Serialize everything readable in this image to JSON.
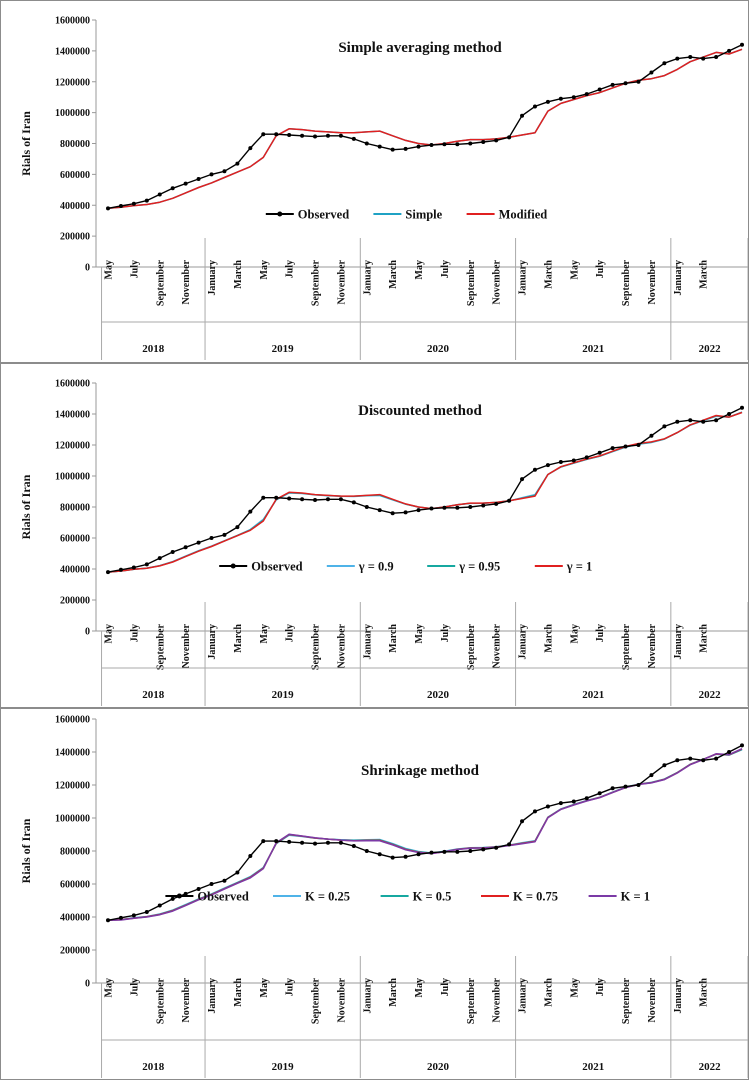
{
  "chart_data": [
    {
      "type": "line",
      "title": "Simple averaging method",
      "ylabel": "Rials of Iran",
      "xlabel": "",
      "ylim": [
        0,
        1600000
      ],
      "yticks": [
        0,
        200000,
        400000,
        600000,
        800000,
        1000000,
        1200000,
        1400000,
        1600000
      ],
      "ytick_labels": [
        "0",
        "200000",
        "400000",
        "600000",
        "800000",
        "1000000",
        "1200000",
        "1400000",
        "1600000"
      ],
      "x_start": "2018-05",
      "x_month_labels": [
        "May",
        "July",
        "September",
        "November",
        "January",
        "March",
        "May",
        "July",
        "September",
        "November",
        "January",
        "March",
        "May",
        "July",
        "September",
        "November",
        "January",
        "March",
        "May",
        "July",
        "September",
        "November",
        "January",
        "March"
      ],
      "year_labels": [
        "2018",
        "2019",
        "2020",
        "2021",
        "2022"
      ],
      "legend_position": "center-bottom",
      "grid": false,
      "series": [
        {
          "name": "Observed",
          "color": "#000000",
          "marker": true,
          "values": [
            380000,
            395000,
            410000,
            430000,
            470000,
            510000,
            540000,
            570000,
            600000,
            620000,
            670000,
            770000,
            860000,
            860000,
            855000,
            850000,
            845000,
            850000,
            850000,
            830000,
            800000,
            780000,
            760000,
            765000,
            780000,
            790000,
            795000,
            795000,
            800000,
            810000,
            820000,
            840000,
            980000,
            1040000,
            1070000,
            1090000,
            1100000,
            1120000,
            1150000,
            1180000,
            1190000,
            1200000,
            1260000,
            1320000,
            1350000,
            1360000,
            1350000,
            1360000,
            1400000,
            1440000
          ]
        },
        {
          "name": "Simple",
          "color": "#1fa2c4",
          "marker": false,
          "values": [
            380000,
            387000,
            398000,
            405000,
            420000,
            445000,
            480000,
            515000,
            545000,
            580000,
            615000,
            650000,
            710000,
            850000,
            895000,
            890000,
            880000,
            875000,
            870000,
            870000,
            875000,
            880000,
            850000,
            820000,
            800000,
            790000,
            800000,
            815000,
            825000,
            825000,
            830000,
            840000,
            855000,
            870000,
            1010000,
            1060000,
            1085000,
            1110000,
            1130000,
            1160000,
            1190000,
            1210000,
            1220000,
            1240000,
            1280000,
            1330000,
            1360000,
            1390000,
            1380000,
            1410000
          ]
        },
        {
          "name": "Modified",
          "color": "#e02020",
          "marker": false,
          "values": [
            380000,
            387000,
            398000,
            405000,
            420000,
            445000,
            480000,
            515000,
            545000,
            580000,
            615000,
            650000,
            710000,
            850000,
            895000,
            890000,
            880000,
            875000,
            870000,
            870000,
            875000,
            880000,
            850000,
            820000,
            800000,
            790000,
            800000,
            815000,
            825000,
            825000,
            830000,
            840000,
            855000,
            870000,
            1010000,
            1060000,
            1085000,
            1110000,
            1130000,
            1160000,
            1190000,
            1210000,
            1220000,
            1240000,
            1280000,
            1330000,
            1360000,
            1390000,
            1380000,
            1410000
          ]
        }
      ]
    },
    {
      "type": "line",
      "title": "Discounted method",
      "ylabel": "Rials of Iran",
      "xlabel": "",
      "ylim": [
        0,
        1600000
      ],
      "yticks": [
        0,
        200000,
        400000,
        600000,
        800000,
        1000000,
        1200000,
        1400000,
        1600000
      ],
      "ytick_labels": [
        "0",
        "200000",
        "400000",
        "600000",
        "800000",
        "1000000",
        "1200000",
        "1400000",
        "1600000"
      ],
      "x_start": "2018-05",
      "x_month_labels": [
        "May",
        "July",
        "September",
        "November",
        "January",
        "March",
        "May",
        "July",
        "September",
        "November",
        "January",
        "March",
        "May",
        "July",
        "September",
        "November",
        "January",
        "March",
        "May",
        "July",
        "September",
        "November",
        "January",
        "March"
      ],
      "year_labels": [
        "2018",
        "2019",
        "2020",
        "2021",
        "2022"
      ],
      "legend_position": "center-bottom",
      "grid": false,
      "series": [
        {
          "name": "Observed",
          "color": "#000000",
          "marker": true,
          "values": [
            380000,
            395000,
            410000,
            430000,
            470000,
            510000,
            540000,
            570000,
            600000,
            620000,
            670000,
            770000,
            860000,
            860000,
            855000,
            850000,
            845000,
            850000,
            850000,
            830000,
            800000,
            780000,
            760000,
            765000,
            780000,
            790000,
            795000,
            795000,
            800000,
            810000,
            820000,
            840000,
            980000,
            1040000,
            1070000,
            1090000,
            1100000,
            1120000,
            1150000,
            1180000,
            1190000,
            1200000,
            1260000,
            1320000,
            1350000,
            1360000,
            1350000,
            1360000,
            1400000,
            1440000
          ]
        },
        {
          "name": "γ = 0.9",
          "color": "#4fb3e8",
          "marker": false,
          "values": [
            380000,
            387000,
            398000,
            406000,
            422000,
            448000,
            483000,
            518000,
            548000,
            582000,
            617000,
            655000,
            720000,
            845000,
            890000,
            887000,
            878000,
            873000,
            869000,
            868000,
            872000,
            874000,
            846000,
            818000,
            799000,
            790000,
            800000,
            814000,
            823000,
            824000,
            829000,
            839000,
            860000,
            880000,
            1010000,
            1058000,
            1083000,
            1107000,
            1127000,
            1157000,
            1186000,
            1205000,
            1216000,
            1238000,
            1280000,
            1328000,
            1357000,
            1385000,
            1380000,
            1412000
          ]
        },
        {
          "name": "γ = 0.95",
          "color": "#16a8a0",
          "marker": false,
          "values": [
            380000,
            387000,
            398000,
            405000,
            421000,
            446000,
            481000,
            516000,
            546000,
            581000,
            616000,
            652000,
            715000,
            848000,
            893000,
            889000,
            879000,
            874000,
            870000,
            869000,
            874000,
            877000,
            848000,
            819000,
            800000,
            790000,
            800000,
            815000,
            824000,
            825000,
            830000,
            840000,
            857000,
            875000,
            1010000,
            1059000,
            1084000,
            1108000,
            1128000,
            1159000,
            1188000,
            1207000,
            1218000,
            1239000,
            1280000,
            1329000,
            1359000,
            1388000,
            1380000,
            1411000
          ]
        },
        {
          "name": "γ = 1",
          "color": "#e02020",
          "marker": false,
          "values": [
            380000,
            387000,
            398000,
            405000,
            420000,
            445000,
            480000,
            515000,
            545000,
            580000,
            615000,
            650000,
            710000,
            850000,
            895000,
            890000,
            880000,
            875000,
            870000,
            870000,
            875000,
            880000,
            850000,
            820000,
            800000,
            790000,
            800000,
            815000,
            825000,
            825000,
            830000,
            840000,
            855000,
            870000,
            1010000,
            1060000,
            1085000,
            1110000,
            1130000,
            1160000,
            1190000,
            1210000,
            1220000,
            1240000,
            1280000,
            1330000,
            1360000,
            1390000,
            1380000,
            1410000
          ]
        }
      ]
    },
    {
      "type": "line",
      "title": "Shrinkage method",
      "ylabel": "Rials of Iran",
      "xlabel": "",
      "ylim": [
        0,
        1600000
      ],
      "yticks": [
        0,
        200000,
        400000,
        600000,
        800000,
        1000000,
        1200000,
        1400000,
        1600000
      ],
      "ytick_labels": [
        "0",
        "200000",
        "400000",
        "600000",
        "800000",
        "1000000",
        "1200000",
        "1400000",
        "1600000"
      ],
      "x_start": "2018-05",
      "x_month_labels": [
        "May",
        "July",
        "September",
        "November",
        "January",
        "March",
        "May",
        "July",
        "September",
        "November",
        "January",
        "March",
        "May",
        "July",
        "September",
        "November",
        "January",
        "March",
        "May",
        "July",
        "September",
        "November",
        "January",
        "March"
      ],
      "year_labels": [
        "2018",
        "2019",
        "2020",
        "2021",
        "2022"
      ],
      "legend_position": "center-bottom",
      "grid": false,
      "series": [
        {
          "name": "Observed",
          "color": "#000000",
          "marker": true,
          "values": [
            380000,
            395000,
            410000,
            430000,
            470000,
            510000,
            540000,
            570000,
            600000,
            620000,
            670000,
            770000,
            860000,
            860000,
            855000,
            850000,
            845000,
            850000,
            850000,
            830000,
            800000,
            780000,
            760000,
            765000,
            780000,
            790000,
            795000,
            795000,
            800000,
            810000,
            820000,
            840000,
            980000,
            1040000,
            1070000,
            1090000,
            1100000,
            1120000,
            1150000,
            1180000,
            1190000,
            1200000,
            1260000,
            1320000,
            1350000,
            1360000,
            1350000,
            1360000,
            1400000,
            1440000
          ]
        },
        {
          "name": "K = 0.25",
          "color": "#4fb3e8",
          "marker": false,
          "values": [
            380000,
            385000,
            395000,
            403000,
            418000,
            442000,
            475000,
            510000,
            540000,
            575000,
            610000,
            645000,
            700000,
            845000,
            895000,
            888000,
            878000,
            872000,
            868000,
            866000,
            868000,
            870000,
            845000,
            815000,
            797000,
            788000,
            798000,
            812000,
            820000,
            821000,
            826000,
            836000,
            850000,
            862000,
            1005000,
            1055000,
            1082000,
            1106000,
            1126000,
            1157000,
            1187000,
            1206000,
            1216000,
            1236000,
            1276000,
            1326000,
            1356000,
            1386000,
            1381000,
            1414000
          ]
        },
        {
          "name": "K = 0.5",
          "color": "#16a8a0",
          "marker": false,
          "values": [
            380000,
            384000,
            394000,
            402000,
            417000,
            440000,
            473000,
            508000,
            538000,
            573000,
            608000,
            642000,
            698000,
            845000,
            898000,
            889000,
            878000,
            872000,
            867000,
            864000,
            866000,
            867000,
            842000,
            812000,
            795000,
            786000,
            797000,
            811000,
            819000,
            820000,
            825000,
            835000,
            848000,
            860000,
            1004000,
            1054000,
            1081000,
            1105000,
            1125000,
            1156000,
            1186000,
            1205000,
            1215000,
            1235000,
            1275000,
            1325000,
            1356000,
            1387000,
            1382000,
            1416000
          ]
        },
        {
          "name": "K = 0.75",
          "color": "#e02020",
          "marker": false,
          "values": [
            380000,
            383000,
            393000,
            401000,
            415000,
            438000,
            471000,
            506000,
            536000,
            571000,
            606000,
            640000,
            695000,
            848000,
            900000,
            890000,
            879000,
            872000,
            866000,
            862000,
            864000,
            864000,
            839000,
            809000,
            793000,
            785000,
            796000,
            810000,
            818000,
            819000,
            824000,
            834000,
            846000,
            858000,
            1003000,
            1053000,
            1080000,
            1104000,
            1124000,
            1155000,
            1185000,
            1204000,
            1214000,
            1234000,
            1274000,
            1324000,
            1355000,
            1388000,
            1383000,
            1418000
          ]
        },
        {
          "name": "K = 1",
          "color": "#7b3aa6",
          "marker": false,
          "values": [
            380000,
            382000,
            392000,
            400000,
            414000,
            436000,
            469000,
            504000,
            534000,
            569000,
            604000,
            637000,
            693000,
            850000,
            902000,
            891000,
            880000,
            872000,
            866000,
            861000,
            862000,
            862000,
            837000,
            807000,
            791000,
            784000,
            795000,
            809000,
            817000,
            818000,
            823000,
            833000,
            844000,
            856000,
            1002000,
            1052000,
            1079000,
            1103000,
            1123000,
            1154000,
            1184000,
            1203000,
            1213000,
            1233000,
            1273000,
            1323000,
            1354000,
            1389000,
            1384000,
            1420000
          ]
        }
      ]
    }
  ]
}
